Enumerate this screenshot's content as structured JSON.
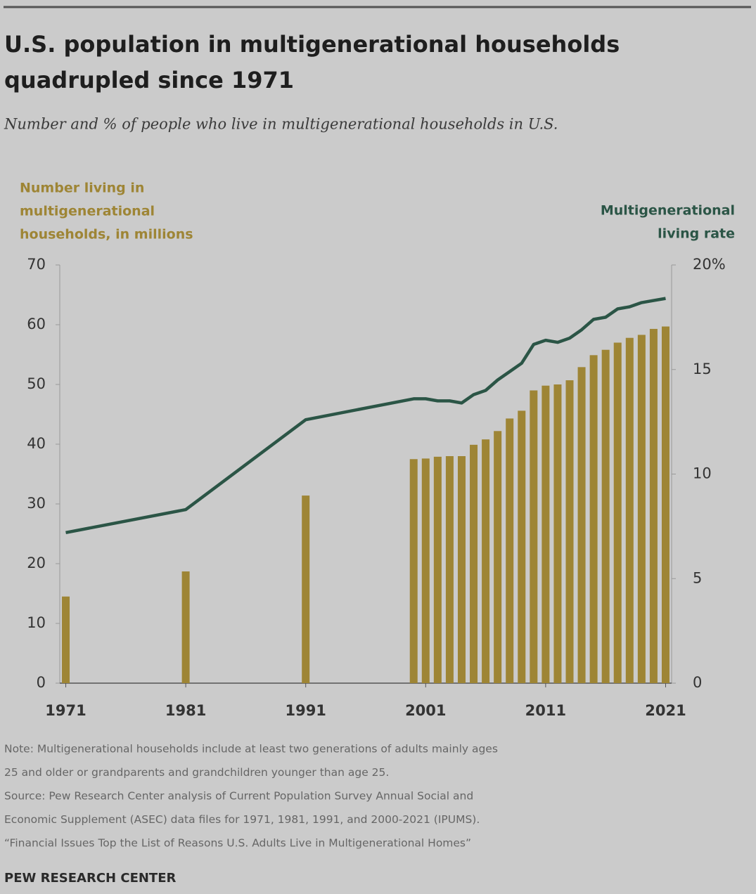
{
  "chart_data": {
    "type": "bar_line",
    "title": [
      "U.S. population in multigenerational households",
      "quadrupled since 1971"
    ],
    "subtitle": "Number and % of people who live in multigenerational households in U.S.",
    "y_label": [
      "Number living in",
      "multigenerational",
      "households, in millions"
    ],
    "y2_label": [
      "Multigenerational",
      "living rate"
    ],
    "x": [
      1971,
      1981,
      1991,
      2000,
      2001,
      2002,
      2003,
      2004,
      2005,
      2006,
      2007,
      2008,
      2009,
      2010,
      2011,
      2012,
      2013,
      2014,
      2015,
      2016,
      2017,
      2018,
      2019,
      2020,
      2021
    ],
    "series": [
      {
        "type": "bar",
        "color": "#9e8535",
        "values": [
          14.5,
          18.7,
          31.4,
          37.5,
          37.6,
          37.9,
          38.0,
          38.0,
          39.9,
          40.8,
          42.2,
          44.3,
          45.6,
          49.0,
          49.8,
          50.0,
          50.7,
          52.9,
          54.9,
          55.8,
          57.0,
          57.8,
          58.3,
          59.3,
          59.7
        ]
      },
      {
        "type": "line",
        "axis": "y2",
        "color": "#2b5546",
        "values": [
          7.2,
          8.3,
          12.6,
          13.6,
          13.6,
          13.5,
          13.5,
          13.4,
          13.8,
          14.0,
          14.5,
          14.9,
          15.3,
          16.2,
          16.4,
          16.3,
          16.5,
          16.9,
          17.4,
          17.5,
          17.9,
          18.0,
          18.2,
          18.3,
          18.4
        ]
      }
    ],
    "xlim": [
      1970.5,
      2021.5
    ],
    "xticks": [
      1971,
      1981,
      1991,
      2001,
      2011,
      2021
    ],
    "ylim": [
      0,
      70
    ],
    "yticks": [
      0,
      10,
      20,
      30,
      40,
      50,
      60,
      70
    ],
    "y2lim": [
      0,
      20
    ],
    "y2ticks": [
      0,
      5,
      10,
      15,
      {
        "value": 20,
        "label": "20%"
      }
    ],
    "notes": [
      "Note: Multigenerational households include at least two generations of adults mainly ages",
      "25 and older or grandparents and grandchildren younger than age 25.",
      "Source: Pew Research Center analysis of Current Population Survey Annual Social and",
      "Economic Supplement (ASEC) data files for 1971, 1981, 1991, and 2000-2021 (IPUMS).",
      "“Financial Issues Top the List of Reasons U.S. Adults Live in Multigenerational Homes”"
    ],
    "source": "PEW RESEARCH CENTER"
  }
}
